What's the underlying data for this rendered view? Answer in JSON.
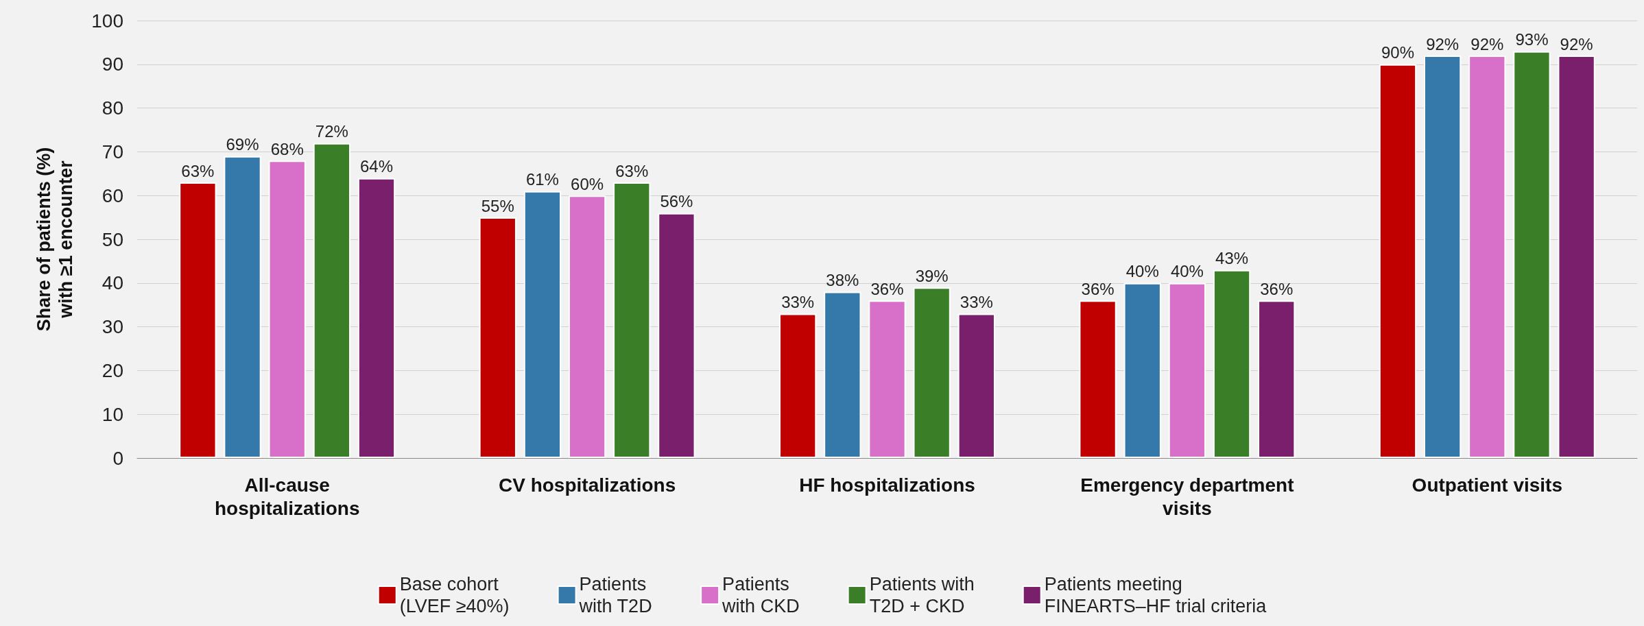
{
  "chart_data": {
    "type": "bar",
    "ylabel": "Share of patients (%)\nwith ≥1 encounter",
    "categories": [
      "All-cause\nhospitalizations",
      "CV hospitalizations",
      "HF hospitalizations",
      "Emergency department\nvisits",
      "Outpatient visits"
    ],
    "series": [
      {
        "name": "Base cohort\n(LVEF ≥40%)",
        "color": "#c00000",
        "values": [
          63,
          55,
          33,
          36,
          90
        ],
        "value_labels": [
          "63%",
          "55%",
          "33%",
          "36%",
          "90%"
        ]
      },
      {
        "name": "Patients\nwith T2D",
        "color": "#3479a9",
        "values": [
          69,
          61,
          38,
          40,
          92
        ],
        "value_labels": [
          "69%",
          "61%",
          "38%",
          "40%",
          "92%"
        ]
      },
      {
        "name": "Patients\nwith CKD",
        "color": "#d870c9",
        "values": [
          68,
          60,
          36,
          40,
          92
        ],
        "value_labels": [
          "68%",
          "60%",
          "36%",
          "40%",
          "92%"
        ]
      },
      {
        "name": "Patients with\nT2D + CKD",
        "color": "#3a7e27",
        "values": [
          72,
          63,
          39,
          43,
          93
        ],
        "value_labels": [
          "72%",
          "63%",
          "39%",
          "43%",
          "93%"
        ]
      },
      {
        "name": "Patients meeting\nFINEARTS–HF trial criteria",
        "color": "#7a1f6b",
        "values": [
          64,
          56,
          33,
          36,
          92
        ],
        "value_labels": [
          "64%",
          "56%",
          "33%",
          "36%",
          "92%"
        ]
      }
    ],
    "ylim": [
      0,
      100
    ],
    "yticks": [
      0,
      10,
      20,
      30,
      40,
      50,
      60,
      70,
      80,
      90,
      100
    ],
    "grid": "y",
    "legend": "bottom"
  }
}
